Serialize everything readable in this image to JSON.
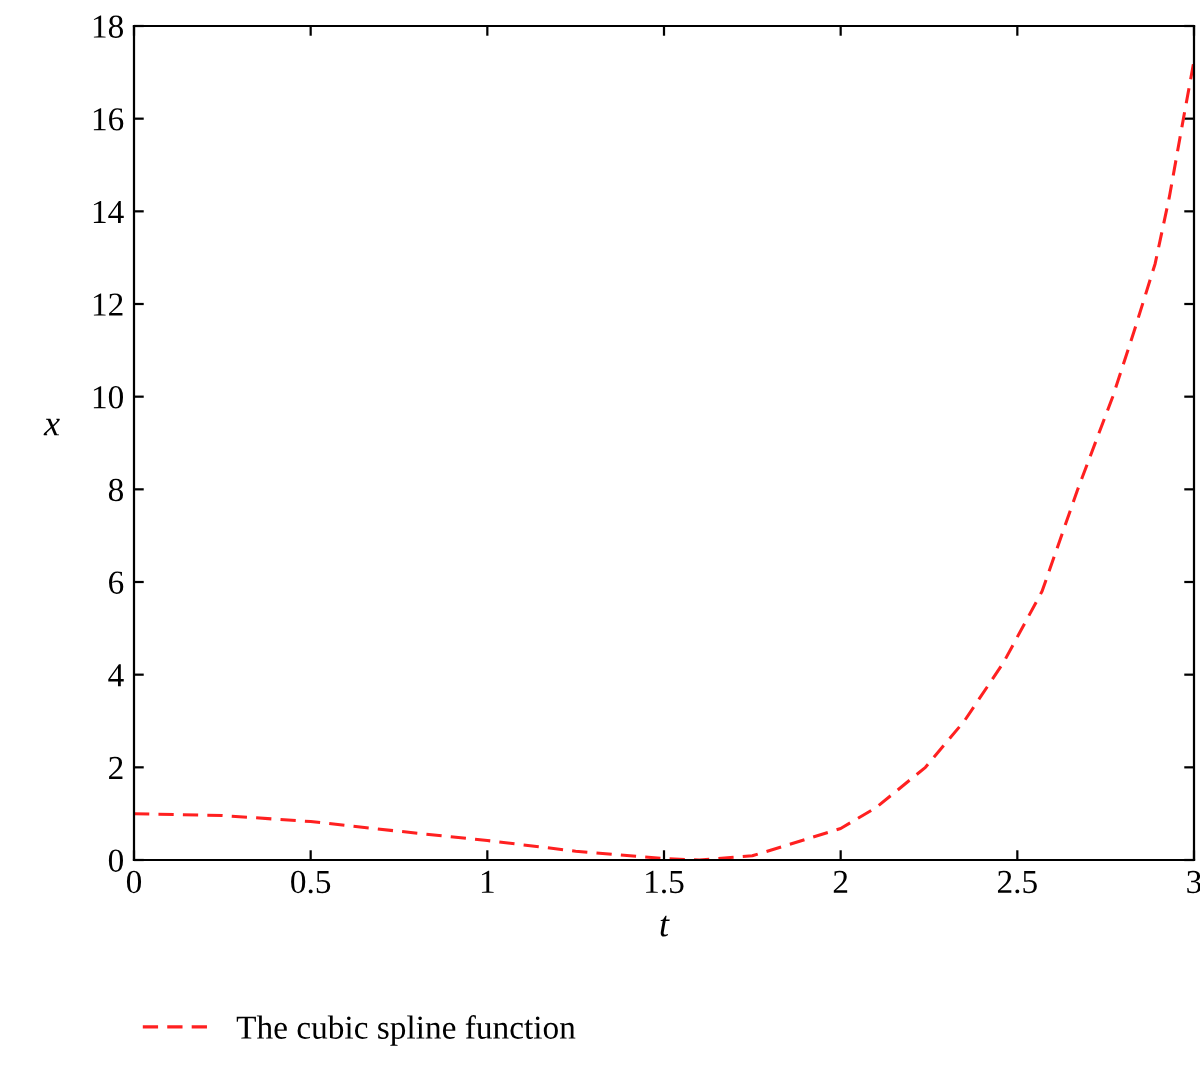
{
  "chart_data": {
    "type": "line",
    "xlabel": "t",
    "ylabel": "x",
    "xlim": [
      0,
      3
    ],
    "ylim": [
      0,
      18
    ],
    "xticks": [
      0,
      0.5,
      1,
      1.5,
      2,
      2.5,
      3
    ],
    "yticks": [
      0,
      2,
      4,
      6,
      8,
      10,
      12,
      14,
      16,
      18
    ],
    "grid": false,
    "legend": "bottom",
    "line_style": "dashed",
    "marker": "none",
    "series": [
      {
        "name": "The cubic spline function",
        "color": "#ff2020",
        "x": [
          0,
          0.25,
          0.5,
          0.75,
          1,
          1.25,
          1.5,
          1.6,
          1.75,
          2,
          2.1,
          2.24,
          2.35,
          2.46,
          2.57,
          2.67,
          2.77,
          2.83,
          2.89,
          2.93,
          2.97,
          3
        ],
        "values": [
          1.0,
          0.96,
          0.83,
          0.62,
          0.42,
          0.19,
          0.03,
          0,
          0.09,
          0.68,
          1.13,
          2.0,
          3.0,
          4.25,
          5.8,
          7.98,
          10.0,
          11.4,
          12.87,
          14.3,
          16.0,
          17.25
        ]
      }
    ]
  }
}
